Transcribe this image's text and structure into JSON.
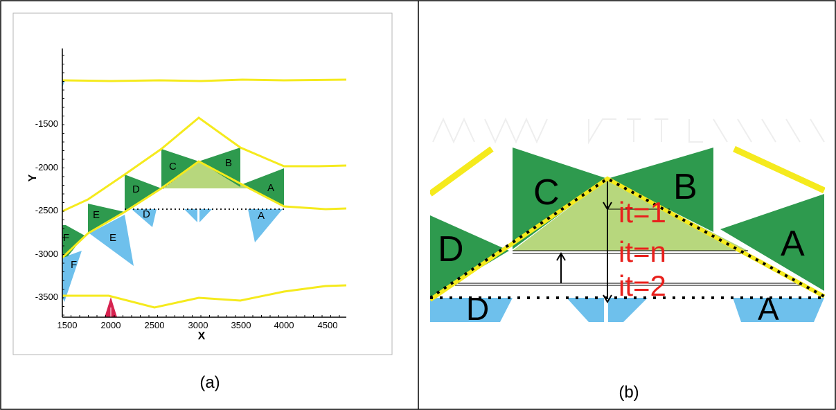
{
  "panel_a": {
    "caption": "(a)",
    "axis_x_label": "X",
    "axis_y_label": "Y",
    "x_ticks": [
      "1500",
      "2000",
      "2500",
      "3000",
      "3500",
      "4000",
      "4500"
    ],
    "y_ticks": [
      "-1500",
      "-2000",
      "-2500",
      "-3000",
      "-3500"
    ],
    "upper_labels": [
      "F",
      "E",
      "D",
      "C",
      "B",
      "A"
    ],
    "lower_labels": [
      "F",
      "E",
      "D",
      "A"
    ]
  },
  "panel_b": {
    "caption": "(b)",
    "block_labels": [
      "D",
      "C",
      "B",
      "A"
    ],
    "lower_labels": [
      "D",
      "A"
    ],
    "iteration_labels": [
      "it=1",
      "it=n",
      "it=2"
    ]
  },
  "colors": {
    "yellow_line": "#f5ea1d",
    "green_block": "#2e9a4e",
    "light_green_fill": "#b7d77d",
    "blue_block": "#6ec0ec",
    "red_marker": "#d6224f",
    "red_text": "#e8201c"
  }
}
